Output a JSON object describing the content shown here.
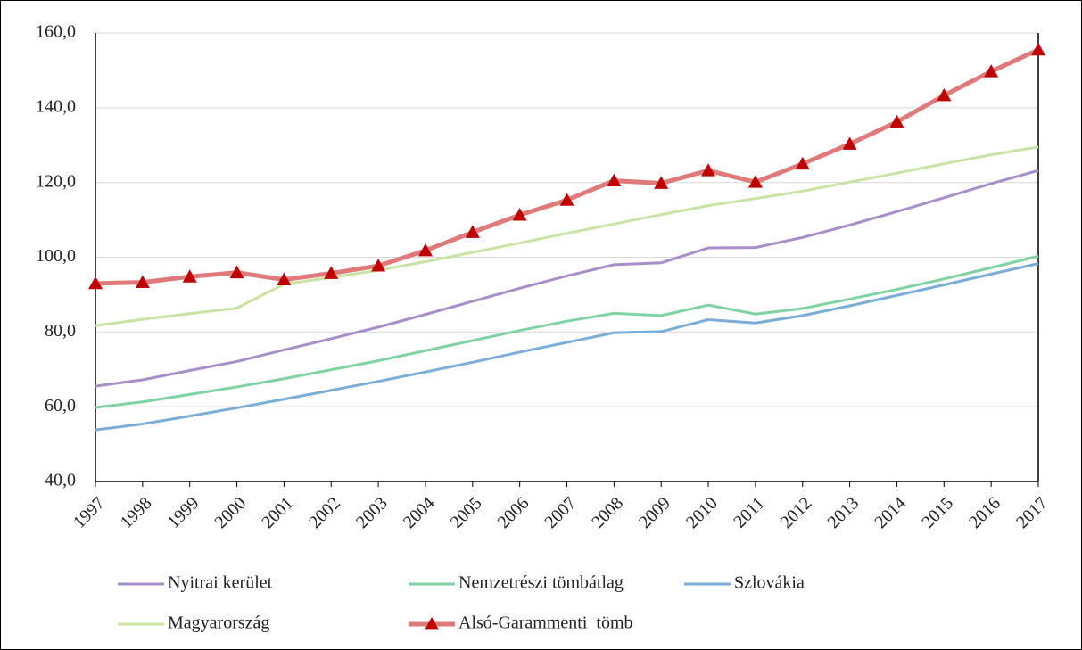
{
  "chart_data": {
    "type": "line",
    "categories": [
      "1997",
      "1998",
      "1999",
      "2000",
      "2001",
      "2002",
      "2003",
      "2004",
      "2005",
      "2006",
      "2007",
      "2008",
      "2009",
      "2010",
      "2011",
      "2012",
      "2013",
      "2014",
      "2015",
      "2016",
      "2017"
    ],
    "series": [
      {
        "name": "Nyitrai kerület",
        "color": "#a78fc9",
        "values": [
          65.5,
          67.2,
          69.7,
          72.1,
          75.2,
          78.2,
          81.3,
          84.7,
          88.2,
          91.7,
          95.0,
          98.0,
          98.5,
          102.5,
          102.6,
          105.3,
          108.6,
          112.2,
          115.9,
          119.7,
          123.2
        ]
      },
      {
        "name": "Nemzetrészi tömbátlag",
        "color": "#7fd3a2",
        "values": [
          59.8,
          61.3,
          63.3,
          65.3,
          67.5,
          69.9,
          72.3,
          75.0,
          77.7,
          80.4,
          82.9,
          85.0,
          84.4,
          87.2,
          84.8,
          86.3,
          88.8,
          91.4,
          94.2,
          97.2,
          100.3
        ]
      },
      {
        "name": "Szlovákia",
        "color": "#7aaed8",
        "values": [
          53.8,
          55.4,
          57.5,
          59.7,
          62.0,
          64.4,
          66.8,
          69.3,
          71.9,
          74.6,
          77.2,
          79.8,
          80.1,
          83.3,
          82.4,
          84.4,
          87.0,
          89.8,
          92.6,
          95.5,
          98.3
        ]
      },
      {
        "name": "Magyarország",
        "color": "#c8e3a2",
        "values": [
          81.7,
          83.4,
          84.9,
          86.4,
          92.8,
          94.6,
          96.5,
          98.8,
          101.3,
          103.8,
          106.4,
          108.9,
          111.4,
          113.8,
          115.7,
          117.7,
          120.1,
          122.5,
          125.0,
          127.4,
          129.5
        ]
      },
      {
        "name": "Alsó-Garammenti  tömb",
        "color": "#e07a7a",
        "marker": "triangle",
        "marker_color": "#c00000",
        "values": [
          93.0,
          93.3,
          94.8,
          95.9,
          94.0,
          95.7,
          97.7,
          101.8,
          106.7,
          111.3,
          115.3,
          120.5,
          119.8,
          123.2,
          120.1,
          125.0,
          130.3,
          136.2,
          143.3,
          149.7,
          155.5
        ]
      }
    ],
    "ylim": [
      40,
      160
    ],
    "yticks": [
      {
        "value": 40,
        "label": "40,0"
      },
      {
        "value": 60,
        "label": "60,0"
      },
      {
        "value": 80,
        "label": "80,0"
      },
      {
        "value": 100,
        "label": "100,0"
      },
      {
        "value": 120,
        "label": "120,0"
      },
      {
        "value": 140,
        "label": "140,0"
      },
      {
        "value": 160,
        "label": "160,0"
      }
    ],
    "grid": true,
    "legend": "bottom"
  }
}
